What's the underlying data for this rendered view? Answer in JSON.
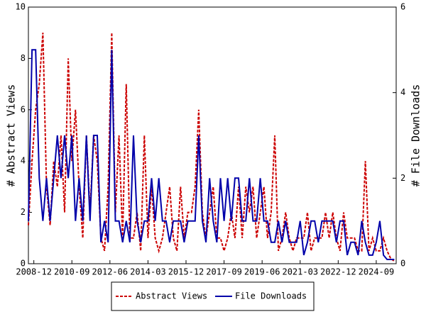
{
  "chart_data": {
    "type": "line",
    "x": [
      "2008-09",
      "2008-11",
      "2009-01",
      "2009-03",
      "2009-05",
      "2009-07",
      "2009-09",
      "2009-11",
      "2010-01",
      "2010-03",
      "2010-05",
      "2010-07",
      "2010-09",
      "2010-11",
      "2011-01",
      "2011-03",
      "2011-05",
      "2011-07",
      "2011-09",
      "2011-11",
      "2012-01",
      "2012-03",
      "2012-05",
      "2012-07",
      "2012-09",
      "2012-11",
      "2013-01",
      "2013-03",
      "2013-05",
      "2013-07",
      "2013-09",
      "2013-11",
      "2014-01",
      "2014-03",
      "2014-05",
      "2014-07",
      "2014-09",
      "2014-11",
      "2015-01",
      "2015-03",
      "2015-05",
      "2015-07",
      "2015-09",
      "2015-11",
      "2016-01",
      "2016-03",
      "2016-05",
      "2016-07",
      "2016-09",
      "2016-11",
      "2017-01",
      "2017-03",
      "2017-05",
      "2017-07",
      "2017-09",
      "2017-11",
      "2018-01",
      "2018-03",
      "2018-05",
      "2018-07",
      "2018-09",
      "2018-11",
      "2019-01",
      "2019-03",
      "2019-05",
      "2019-07",
      "2019-09",
      "2019-11",
      "2020-01",
      "2020-03",
      "2020-05",
      "2020-07",
      "2020-09",
      "2020-11",
      "2021-01",
      "2021-03",
      "2021-05",
      "2021-07",
      "2021-09",
      "2021-11",
      "2022-01",
      "2022-03",
      "2022-05",
      "2022-07",
      "2022-09",
      "2022-11",
      "2023-01",
      "2023-03",
      "2023-05",
      "2023-07",
      "2023-09",
      "2023-11",
      "2024-01",
      "2024-03",
      "2024-05",
      "2024-07",
      "2024-09",
      "2024-11",
      "2025-01",
      "2025-03",
      "2025-05",
      "2025-07"
    ],
    "series": [
      {
        "name": "Abstract Views",
        "color": "#cc0000",
        "dashed": true,
        "axis": "y",
        "values": [
          1.5,
          4,
          6,
          7,
          9,
          3,
          1.5,
          4,
          3,
          5,
          2,
          8,
          4,
          6,
          3,
          1,
          5,
          2,
          5,
          4,
          1,
          0.5,
          3,
          9,
          2,
          5,
          1,
          7,
          1,
          1,
          2,
          0.5,
          5,
          1,
          3,
          1,
          0.5,
          1,
          2,
          3,
          1,
          0.5,
          3,
          1,
          2,
          2,
          3,
          6,
          2,
          1,
          2,
          3,
          1,
          1,
          0.5,
          1,
          2,
          1,
          3,
          1,
          3,
          2,
          3,
          1,
          2,
          3,
          1,
          2,
          5,
          0.5,
          1,
          2,
          1,
          0.5,
          1,
          1,
          1,
          2,
          0.5,
          1,
          1,
          1,
          2,
          1,
          2,
          1,
          0.5,
          2,
          1,
          1,
          1,
          0.5,
          0.5,
          4,
          0.5,
          1,
          0.5,
          0.5,
          1,
          0.5,
          0.2,
          0.1
        ]
      },
      {
        "name": "File Downloads",
        "color": "#0000aa",
        "dashed": false,
        "axis": "y2",
        "values": [
          1,
          5,
          5,
          2,
          1,
          2,
          1,
          2,
          3,
          2,
          3,
          2,
          3,
          1,
          2,
          1,
          3,
          1,
          3,
          3,
          0.5,
          1,
          0.5,
          5,
          1,
          1,
          0.5,
          1,
          0.5,
          3,
          1,
          0.5,
          1,
          1,
          2,
          1,
          2,
          1,
          1,
          0.5,
          1,
          1,
          1,
          0.5,
          1,
          1,
          1,
          3,
          1,
          0.5,
          2,
          1,
          0.5,
          2,
          1,
          2,
          1,
          2,
          2,
          1,
          1,
          2,
          1,
          1,
          2,
          1,
          1,
          0.5,
          0.5,
          1,
          0.5,
          1,
          0.5,
          0.5,
          0.5,
          1,
          0.2,
          0.5,
          1,
          1,
          0.5,
          1,
          1,
          1,
          1,
          0.5,
          1,
          1,
          0.2,
          0.5,
          0.5,
          0.2,
          1,
          0.5,
          0.2,
          0.2,
          0.5,
          1,
          0.2,
          0.1,
          0.1,
          0.1
        ]
      }
    ],
    "xlim": [
      "2008-09",
      "2025-08"
    ],
    "xticks": [
      "2008-12",
      "2010-09",
      "2012-06",
      "2014-03",
      "2015-12",
      "2017-09",
      "2019-06",
      "2021-03",
      "2022-12",
      "2024-09"
    ],
    "ylim": [
      0,
      10
    ],
    "yticks": [
      0,
      2,
      4,
      6,
      8,
      10
    ],
    "y2lim": [
      0,
      6
    ],
    "y2ticks": [
      0,
      2,
      4,
      6
    ],
    "ylabel": "# Abstract Views",
    "y2label": "# File Downloads",
    "legend": "bottom"
  }
}
